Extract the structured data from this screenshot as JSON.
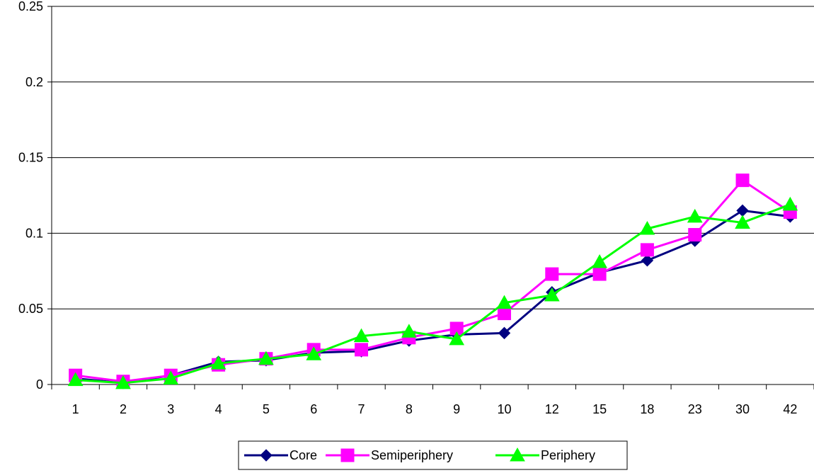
{
  "chart_data": {
    "type": "line",
    "title": "",
    "xlabel": "",
    "ylabel": "",
    "categories": [
      "1",
      "2",
      "3",
      "4",
      "5",
      "6",
      "7",
      "8",
      "9",
      "10",
      "12",
      "15",
      "18",
      "23",
      "30",
      "42"
    ],
    "ylim": [
      0,
      0.25
    ],
    "yticks": [
      "0",
      "0.05",
      "0.1",
      "0.15",
      "0.2",
      "0.25"
    ],
    "grid": "horizontal",
    "legend_position": "bottom",
    "series": [
      {
        "name": "Core",
        "color": "#000080",
        "marker": "diamond",
        "values": [
          0.004,
          0.001,
          0.006,
          0.015,
          0.016,
          0.021,
          0.022,
          0.029,
          0.033,
          0.034,
          0.061,
          0.074,
          0.082,
          0.095,
          0.115,
          0.111
        ]
      },
      {
        "name": "Semiperiphery",
        "color": "#ff00ff",
        "marker": "square",
        "values": [
          0.006,
          0.002,
          0.006,
          0.013,
          0.017,
          0.023,
          0.023,
          0.031,
          0.037,
          0.047,
          0.073,
          0.073,
          0.089,
          0.099,
          0.135,
          0.114
        ]
      },
      {
        "name": "Periphery",
        "color": "#00ff00",
        "marker": "triangle",
        "values": [
          0.003,
          0.001,
          0.004,
          0.014,
          0.017,
          0.02,
          0.032,
          0.035,
          0.03,
          0.054,
          0.059,
          0.081,
          0.103,
          0.111,
          0.107,
          0.119
        ]
      }
    ]
  }
}
